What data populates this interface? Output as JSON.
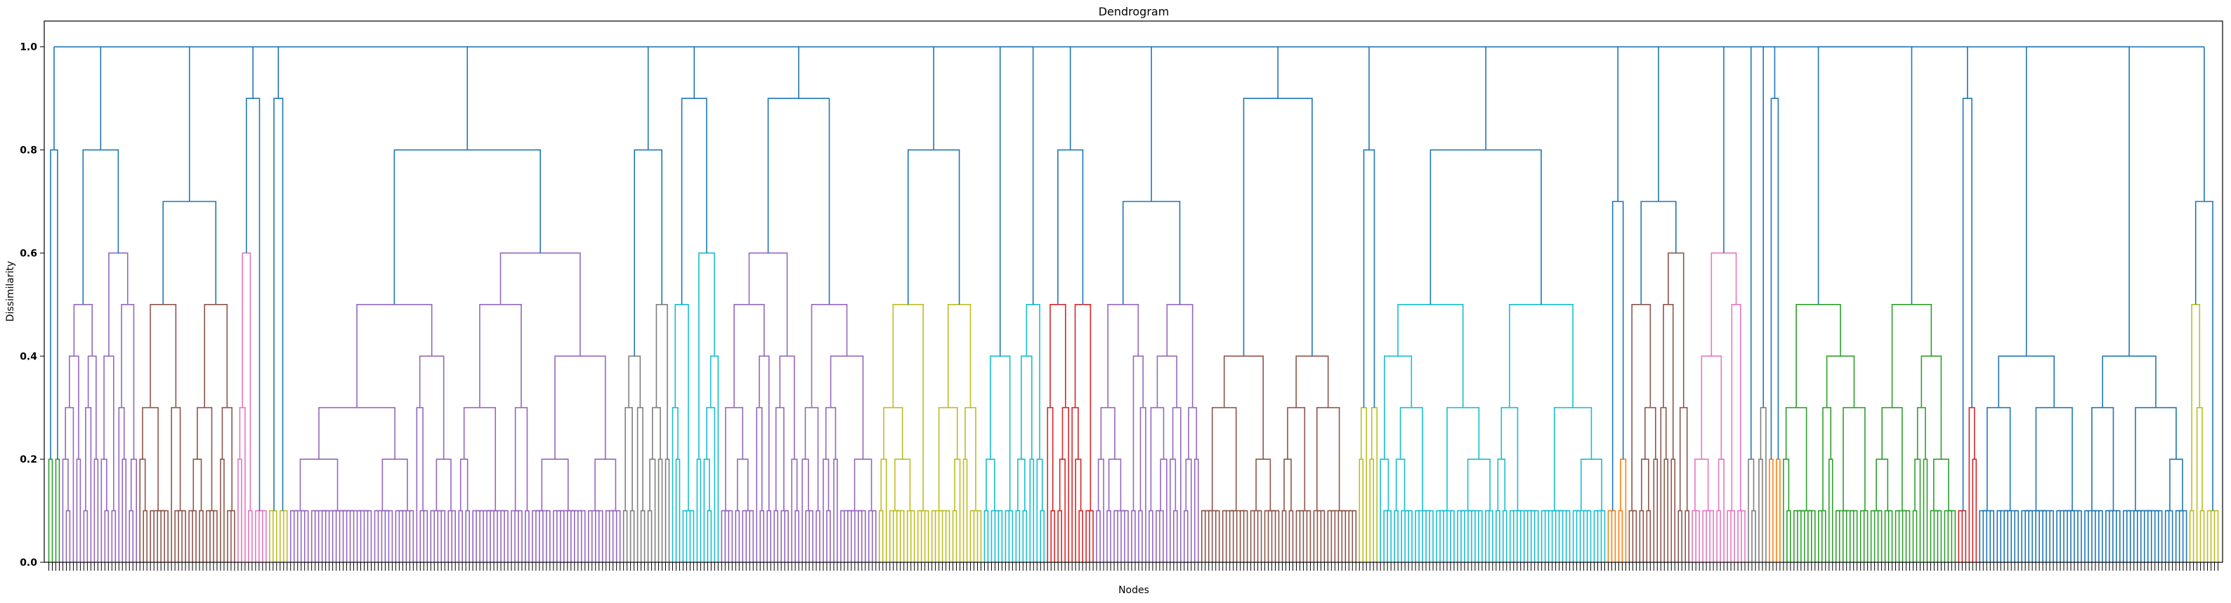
{
  "chart_data": {
    "type": "dendrogram",
    "title": "Dendrogram",
    "xlabel": "Nodes",
    "ylabel": "Dissimilarity",
    "ylim": [
      0.0,
      1.05
    ],
    "yticks": [
      "0.0",
      "0.2",
      "0.4",
      "0.6",
      "0.8",
      "1.0"
    ],
    "grid": false,
    "above_threshold_color": "#1f77b4",
    "palette": {
      "green": "#2ca02c",
      "purple": "#9467bd",
      "brown": "#8c564b",
      "pink": "#e377c2",
      "olive": "#bcbd22",
      "red": "#d62728",
      "gray": "#7f7f7f",
      "cyan": "#17becf",
      "orange": "#ff7f0e"
    },
    "leaf_count": 620,
    "root_height": 1.0,
    "top_level_groups": [
      {
        "merge_height": 0.8,
        "cluster_color": "#2ca02c",
        "cluster_height": 0.6,
        "leaves": 4
      },
      {
        "merge_height": 0.8,
        "cluster_color": "#9467bd",
        "cluster_height": 0.6,
        "leaves": 22
      },
      {
        "merge_height": 0.7,
        "cluster_color": "#8c564b",
        "cluster_height": 0.6,
        "leaves": 28
      },
      {
        "merge_height": 0.9,
        "cluster_color": "#e377c2",
        "cluster_height": 0.6,
        "leaves": 9
      },
      {
        "merge_height": 0.9,
        "cluster_color": "#bcbd22",
        "cluster_height": 0.6,
        "leaves": 6
      },
      {
        "merge_height": 0.8,
        "cluster_color": "#9467bd",
        "cluster_height": 0.6,
        "leaves": 95
      },
      {
        "merge_height": 0.8,
        "cluster_color": "#7f7f7f",
        "cluster_height": 0.5,
        "leaves": 14
      },
      {
        "merge_height": 0.9,
        "cluster_color": "#17becf",
        "cluster_height": 0.6,
        "leaves": 14
      },
      {
        "merge_height": 0.9,
        "cluster_color": "#9467bd",
        "cluster_height": 0.6,
        "leaves": 45
      },
      {
        "merge_height": 0.8,
        "cluster_color": "#bcbd22",
        "cluster_height": 0.6,
        "leaves": 30
      },
      {
        "merge_height": 1.0,
        "cluster_color": "#17becf",
        "cluster_height": 0.5,
        "leaves": 18
      },
      {
        "merge_height": 0.8,
        "cluster_color": "#d62728",
        "cluster_height": 0.5,
        "leaves": 14
      },
      {
        "merge_height": 0.7,
        "cluster_color": "#9467bd",
        "cluster_height": 0.6,
        "leaves": 30
      },
      {
        "merge_height": 0.9,
        "cluster_color": "#8c564b",
        "cluster_height": 0.5,
        "leaves": 45
      },
      {
        "merge_height": 0.8,
        "cluster_color": "#bcbd22",
        "cluster_height": 0.6,
        "leaves": 6
      },
      {
        "merge_height": 0.8,
        "cluster_color": "#17becf",
        "cluster_height": 0.5,
        "leaves": 65
      },
      {
        "merge_height": 0.7,
        "cluster_color": "#ff7f0e",
        "cluster_height": 0.6,
        "leaves": 6
      },
      {
        "merge_height": 0.7,
        "cluster_color": "#8c564b",
        "cluster_height": 0.6,
        "leaves": 18
      },
      {
        "merge_height": 0.6,
        "cluster_color": "#e377c2",
        "cluster_height": 0.6,
        "leaves": 16
      },
      {
        "merge_height": 1.0,
        "cluster_color": "#7f7f7f",
        "cluster_height": 0.5,
        "leaves": 6
      },
      {
        "merge_height": 0.9,
        "cluster_color": "#ff7f0e",
        "cluster_height": 0.5,
        "leaves": 4
      },
      {
        "merge_height": 1.0,
        "cluster_color": "#2ca02c",
        "cluster_height": 0.6,
        "leaves": 50
      },
      {
        "merge_height": 0.9,
        "cluster_color": "#d62728",
        "cluster_height": 0.6,
        "leaves": 6
      },
      {
        "merge_height": 1.0,
        "cluster_color": "#1f77b4",
        "cluster_height": 0.4,
        "leaves": 60
      },
      {
        "merge_height": 0.7,
        "cluster_color": "#bcbd22",
        "cluster_height": 0.6,
        "leaves": 9
      }
    ]
  }
}
